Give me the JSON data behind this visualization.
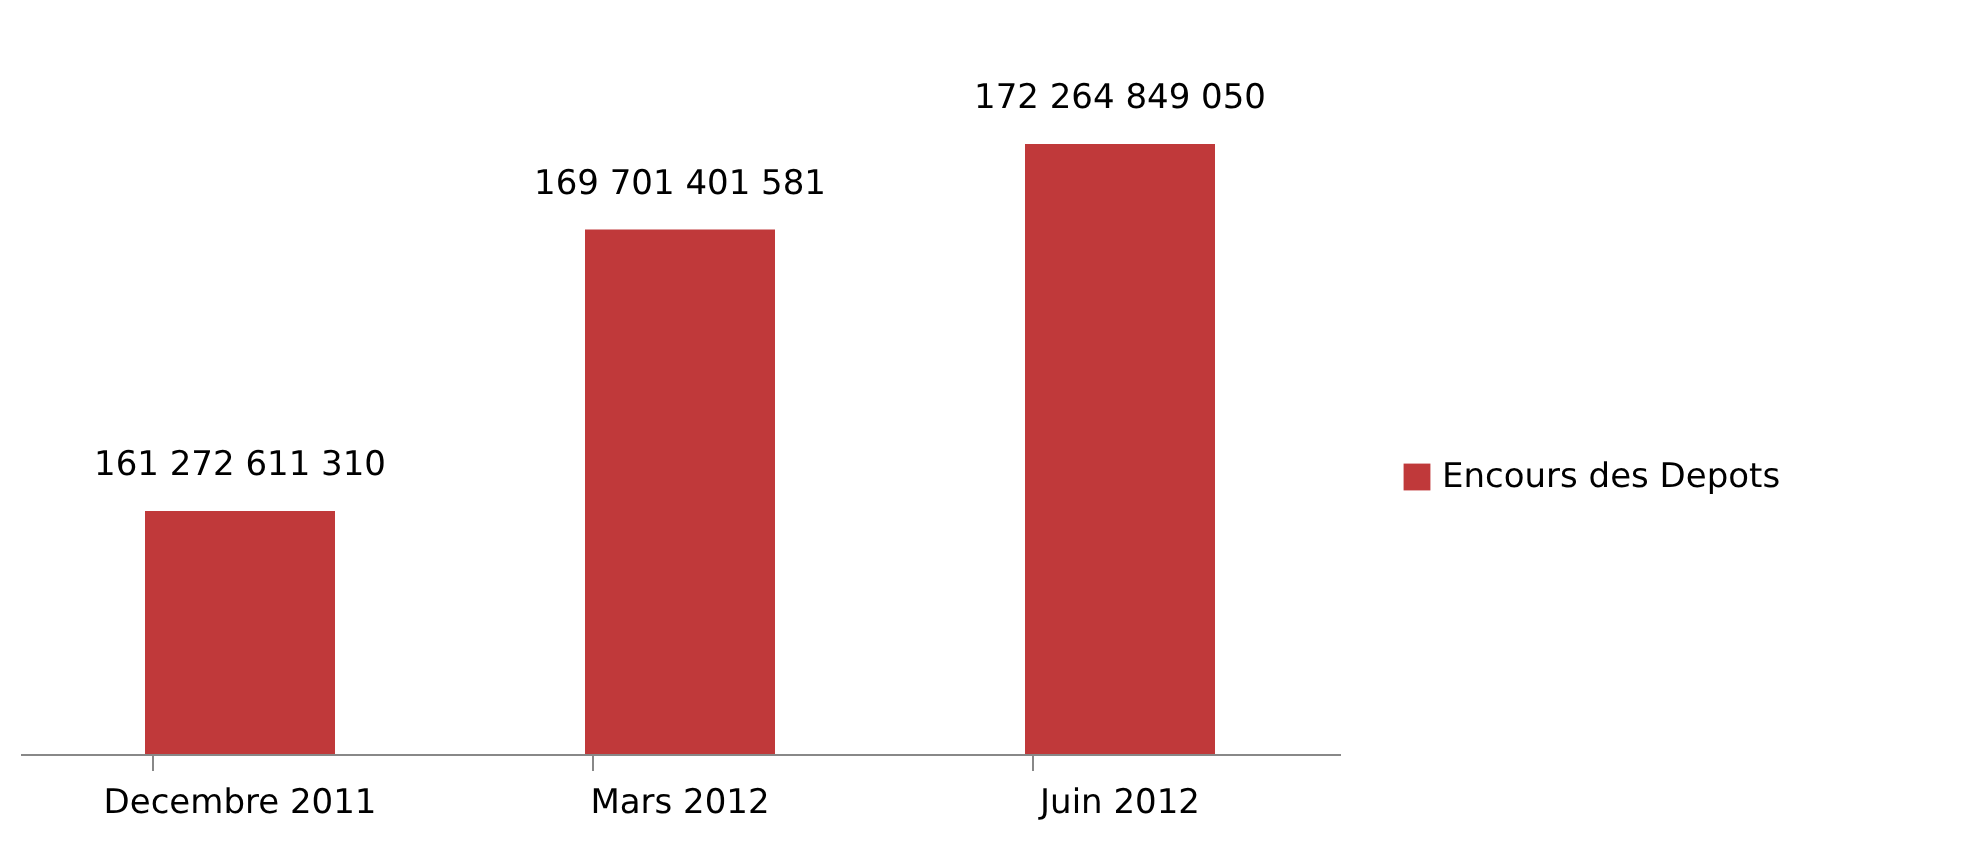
{
  "chart_data": {
    "type": "bar",
    "categories": [
      "Decembre 2011",
      "Mars 2012",
      "Juin 2012"
    ],
    "series": [
      {
        "name": "Encours des Depots",
        "color": "#c0393a",
        "values": [
          161272611310,
          169701401581,
          172264849050
        ]
      }
    ],
    "ylim": [
      154000000000,
      172264849050
    ],
    "data_labels": true,
    "legend": "right",
    "grid": false
  }
}
